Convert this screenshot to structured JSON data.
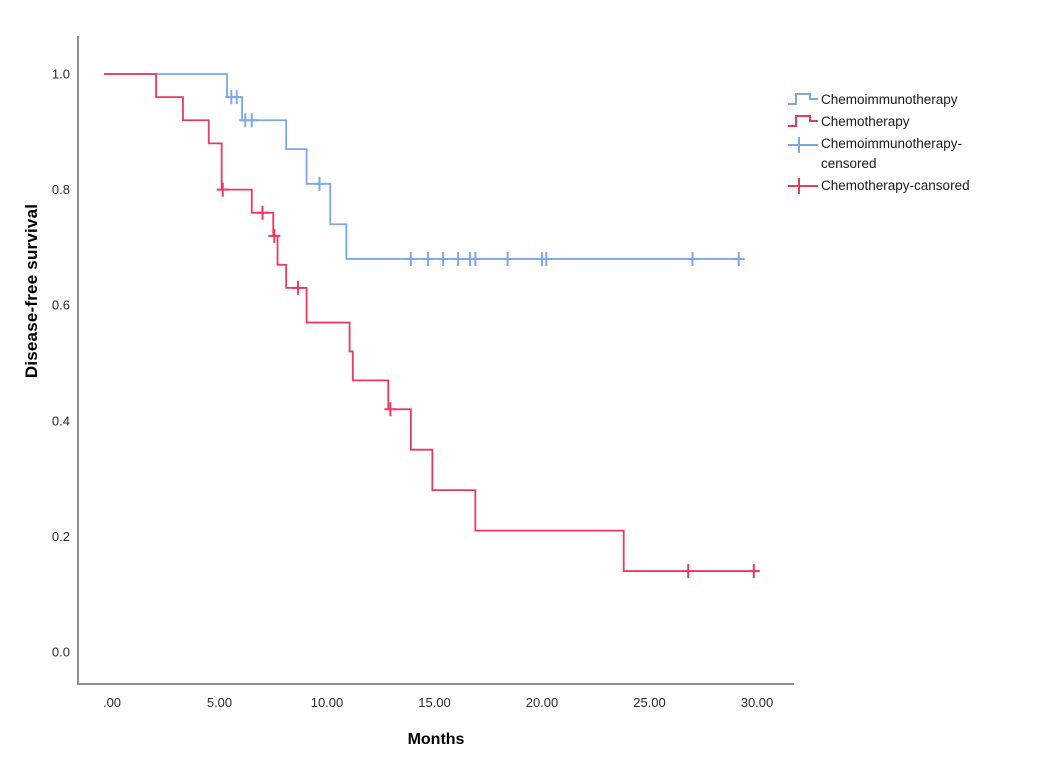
{
  "chart_data": {
    "type": "line",
    "variant": "kaplan_meier_step",
    "title": "",
    "xlabel": "Months",
    "ylabel": "Disease-free survival",
    "grid": false,
    "legend_position": "right",
    "xlim": [
      -1.6,
      31.7
    ],
    "ylim": [
      -0.055,
      1.06
    ],
    "x_ticks": {
      "values": [
        0,
        5,
        10,
        15,
        20,
        25,
        30
      ],
      "labels": [
        ".00",
        "5.00",
        "10.00",
        "15.00",
        "20.00",
        "25.00",
        "30.00"
      ]
    },
    "y_ticks": {
      "values": [
        0,
        0.2,
        0.4,
        0.6,
        0.8,
        1.0
      ],
      "labels": [
        "0.0",
        "0.2",
        "0.4",
        "0.6",
        "0.8",
        "1.0"
      ]
    },
    "axis_color": "#8f8f8f",
    "tick_label_color": "#2b2b2b",
    "series": [
      {
        "name": "Chemoimmunotherapy",
        "color": "#7ea6e9",
        "steps": [
          [
            0,
            1.0
          ],
          [
            5.35,
            1.0
          ],
          [
            5.35,
            0.96
          ],
          [
            6.05,
            0.96
          ],
          [
            6.05,
            0.92
          ],
          [
            8.1,
            0.92
          ],
          [
            8.1,
            0.87
          ],
          [
            9.05,
            0.87
          ],
          [
            9.05,
            0.81
          ],
          [
            10.15,
            0.81
          ],
          [
            10.15,
            0.74
          ],
          [
            10.9,
            0.74
          ],
          [
            10.9,
            0.68
          ],
          [
            29.3,
            0.68
          ]
        ],
        "censored": [
          [
            5.55,
            0.96
          ],
          [
            5.8,
            0.96
          ],
          [
            6.2,
            0.92
          ],
          [
            6.5,
            0.92
          ],
          [
            9.65,
            0.81
          ],
          [
            13.9,
            0.68
          ],
          [
            14.7,
            0.68
          ],
          [
            15.4,
            0.68
          ],
          [
            16.1,
            0.68
          ],
          [
            16.65,
            0.68
          ],
          [
            16.9,
            0.68
          ],
          [
            18.4,
            0.68
          ],
          [
            20.0,
            0.68
          ],
          [
            20.2,
            0.68
          ],
          [
            27.0,
            0.68
          ],
          [
            29.15,
            0.68
          ]
        ]
      },
      {
        "name": "Chemotherapy",
        "color": "#e63b61",
        "steps": [
          [
            0,
            1.0
          ],
          [
            2.05,
            1.0
          ],
          [
            2.05,
            0.96
          ],
          [
            3.3,
            0.96
          ],
          [
            3.3,
            0.92
          ],
          [
            4.5,
            0.92
          ],
          [
            4.5,
            0.88
          ],
          [
            5.1,
            0.88
          ],
          [
            5.1,
            0.8
          ],
          [
            6.5,
            0.8
          ],
          [
            6.5,
            0.76
          ],
          [
            7.5,
            0.76
          ],
          [
            7.5,
            0.72
          ],
          [
            7.7,
            0.72
          ],
          [
            7.7,
            0.67
          ],
          [
            8.1,
            0.67
          ],
          [
            8.1,
            0.63
          ],
          [
            9.05,
            0.63
          ],
          [
            9.05,
            0.57
          ],
          [
            11.05,
            0.57
          ],
          [
            11.05,
            0.52
          ],
          [
            11.2,
            0.52
          ],
          [
            11.2,
            0.47
          ],
          [
            12.85,
            0.47
          ],
          [
            12.85,
            0.42
          ],
          [
            13.9,
            0.42
          ],
          [
            13.9,
            0.35
          ],
          [
            14.9,
            0.35
          ],
          [
            14.9,
            0.28
          ],
          [
            16.9,
            0.28
          ],
          [
            16.9,
            0.21
          ],
          [
            23.8,
            0.21
          ],
          [
            23.8,
            0.14
          ],
          [
            30.1,
            0.14
          ]
        ],
        "censored": [
          [
            5.15,
            0.8
          ],
          [
            7.0,
            0.76
          ],
          [
            7.55,
            0.72
          ],
          [
            8.65,
            0.63
          ],
          [
            12.95,
            0.42
          ],
          [
            26.8,
            0.14
          ],
          [
            29.85,
            0.14
          ]
        ]
      }
    ],
    "legend": {
      "items": [
        {
          "label": "Chemoimmunotherapy",
          "glyph": "step-line",
          "series": 0
        },
        {
          "label": "Chemotherapy",
          "glyph": "step-line",
          "series": 1
        },
        {
          "label": "Chemoimmunotherapy-censored",
          "glyph": "censor-plus",
          "series": 0
        },
        {
          "label": "Chemotherapy-cansored",
          "glyph": "censor-plus",
          "series": 1
        }
      ]
    }
  }
}
